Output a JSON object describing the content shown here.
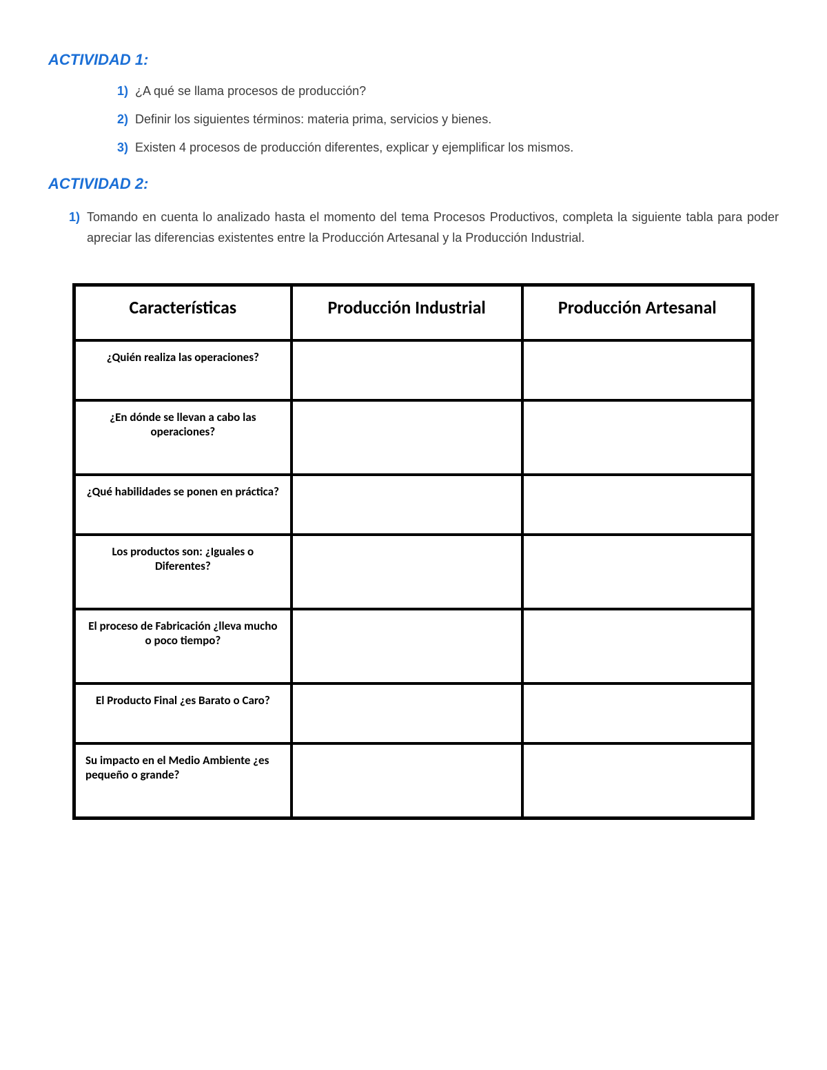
{
  "activity1": {
    "title": "ACTIVIDAD 1:",
    "items": [
      {
        "marker": "1)",
        "text": "¿A qué se llama procesos de producción?"
      },
      {
        "marker": "2)",
        "text": "Definir los siguientes términos: materia prima, servicios y bienes."
      },
      {
        "marker": "3)",
        "text": "Existen 4 procesos de producción diferentes, explicar y ejemplificar los mismos."
      }
    ]
  },
  "activity2": {
    "title": "ACTIVIDAD 2:",
    "items": [
      {
        "marker": "1)",
        "text": "Tomando en cuenta lo analizado hasta el momento del tema Procesos Productivos, completa la siguiente tabla para poder apreciar las diferencias existentes entre la Producción Artesanal y la Producción Industrial."
      }
    ]
  },
  "table": {
    "columns": [
      "Características",
      "Producción Industrial",
      "Producción Artesanal"
    ],
    "rows": [
      {
        "characteristic": "¿Quién realiza las operaciones?",
        "industrial": "",
        "artesanal": "",
        "align": "center"
      },
      {
        "characteristic": "¿En dónde se llevan a cabo las operaciones?",
        "industrial": "",
        "artesanal": "",
        "align": "center"
      },
      {
        "characteristic": "¿Qué habilidades se ponen en práctica?",
        "industrial": "",
        "artesanal": "",
        "align": "center"
      },
      {
        "characteristic": "Los productos son: ¿Iguales o Diferentes?",
        "industrial": "",
        "artesanal": "",
        "align": "center"
      },
      {
        "characteristic": "El proceso de Fabricación ¿lleva mucho o poco tiempo?",
        "industrial": "",
        "artesanal": "",
        "align": "center"
      },
      {
        "characteristic": "El Producto Final ¿es Barato o Caro?",
        "industrial": "",
        "artesanal": "",
        "align": "center"
      },
      {
        "characteristic": "Su impacto en el Medio Ambiente ¿es pequeño o grande?",
        "industrial": "",
        "artesanal": "",
        "align": "left"
      }
    ],
    "border_color": "#000000",
    "header_fontsize": 26,
    "cell_fontsize": 17,
    "background_color": "#ffffff"
  },
  "colors": {
    "accent": "#1b6fd6",
    "text": "#3c3c3c",
    "table_border": "#000000",
    "background": "#ffffff"
  }
}
